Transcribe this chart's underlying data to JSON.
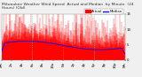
{
  "actual_color": "#ff0000",
  "median_color": "#0000ff",
  "background_color": "#f0f0f0",
  "plot_bg_color": "#ffffff",
  "n_points": 1440,
  "y_min": 0,
  "y_max": 15,
  "y_ticks": [
    0,
    5,
    10,
    15
  ],
  "y_tick_labels": [
    "0",
    "5",
    "10",
    "15"
  ],
  "x_tick_positions": [
    0,
    120,
    240,
    360,
    480,
    600,
    720,
    840,
    960,
    1080,
    1200,
    1320,
    1440
  ],
  "x_tick_labels": [
    "Mn",
    "2a",
    "4a",
    "6a",
    "8a",
    "10a",
    "Nn",
    "2p",
    "4p",
    "6p",
    "8p",
    "10p",
    "Mn"
  ],
  "vline_positions": [
    360,
    720,
    1080
  ],
  "title_fontsize": 3.2,
  "tick_fontsize": 2.8,
  "legend_fontsize": 2.8,
  "seed": 42,
  "median_base": 5.5,
  "median_amplitude": 1.0,
  "median_noise": 0.15,
  "actual_spike_scale": 2.5
}
